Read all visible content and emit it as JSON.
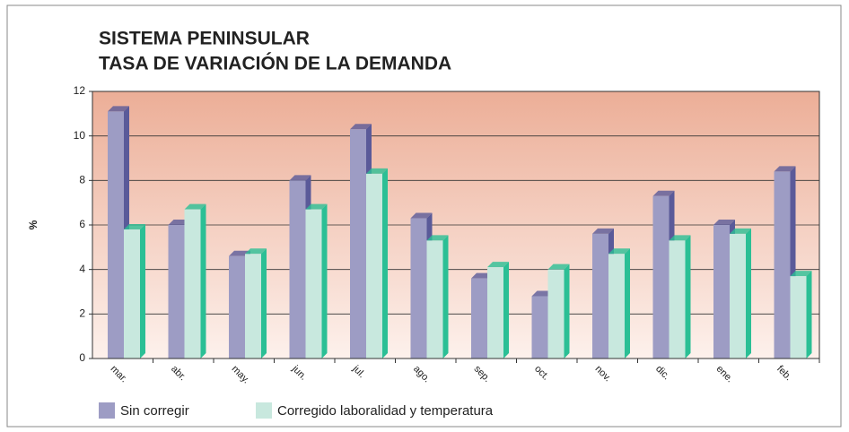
{
  "chart_data": {
    "type": "bar",
    "title": "SISTEMA PENINSULAR",
    "subtitle": "TASA DE VARIACIÓN DE LA DEMANDA",
    "y_label": "%",
    "categories": [
      "mar.",
      "abr.",
      "may.",
      "jun.",
      "jul.",
      "ago.",
      "sep.",
      "oct.",
      "nov.",
      "dic.",
      "ene.",
      "feb."
    ],
    "series": [
      {
        "name": "Sin corregir",
        "color": "#9d9cc4",
        "side_color": "#5a5a99",
        "values": [
          11.1,
          6.0,
          4.6,
          8.0,
          10.3,
          6.3,
          3.6,
          2.8,
          5.6,
          7.3,
          6.0,
          8.4
        ]
      },
      {
        "name": "Corregido laboralidad y temperatura",
        "color": "#c8e8de",
        "side_color": "#2bbf95",
        "values": [
          5.8,
          6.7,
          4.7,
          6.7,
          8.3,
          5.3,
          4.1,
          4.0,
          4.7,
          5.3,
          5.6,
          3.7
        ]
      }
    ],
    "ylim": [
      0,
      12
    ],
    "yticks": [
      0,
      2,
      4,
      6,
      8,
      10,
      12
    ],
    "grid": true
  }
}
